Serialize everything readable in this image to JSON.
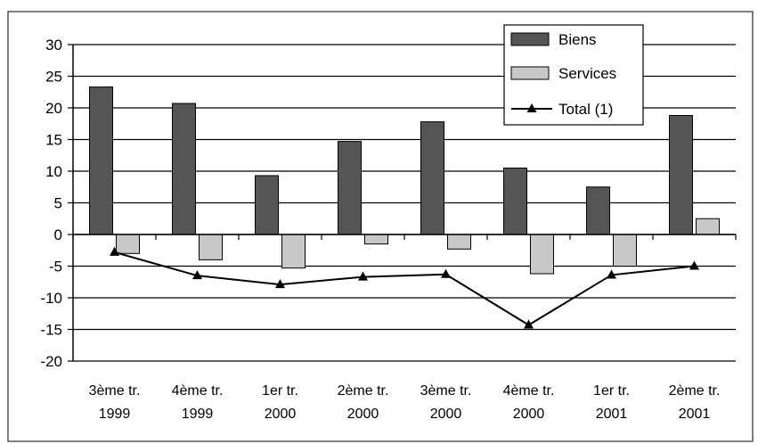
{
  "chart_data": {
    "type": "bar",
    "categories": [
      [
        "3ème tr.",
        "1999"
      ],
      [
        "4ème tr.",
        "1999"
      ],
      [
        "1er tr.",
        "2000"
      ],
      [
        "2ème tr.",
        "2000"
      ],
      [
        "3ème tr.",
        "2000"
      ],
      [
        "4ème tr.",
        "2000"
      ],
      [
        "1er tr.",
        "2001"
      ],
      [
        "2ème tr.",
        "2001"
      ]
    ],
    "series": [
      {
        "name": "Biens",
        "kind": "bar",
        "color": "#555555",
        "values": [
          23.3,
          20.7,
          9.3,
          14.7,
          17.8,
          10.5,
          7.5,
          18.8
        ]
      },
      {
        "name": "Services",
        "kind": "bar",
        "color": "#c8c8c8",
        "values": [
          -3.0,
          -4.0,
          -5.3,
          -1.5,
          -2.3,
          -6.2,
          -5.0,
          2.5
        ]
      },
      {
        "name": "Total (1)",
        "kind": "line",
        "marker": "triangle",
        "color": "#000000",
        "values": [
          -2.8,
          -6.5,
          -7.9,
          -6.7,
          -6.3,
          -14.3,
          -6.4,
          -5.0
        ]
      }
    ],
    "ylim": [
      -20,
      30
    ],
    "yticks": [
      30,
      25,
      20,
      15,
      10,
      5,
      0,
      -5,
      -10,
      -15,
      -20
    ],
    "grid": true,
    "legend": "top-right",
    "title": "",
    "xlabel": "",
    "ylabel": ""
  }
}
